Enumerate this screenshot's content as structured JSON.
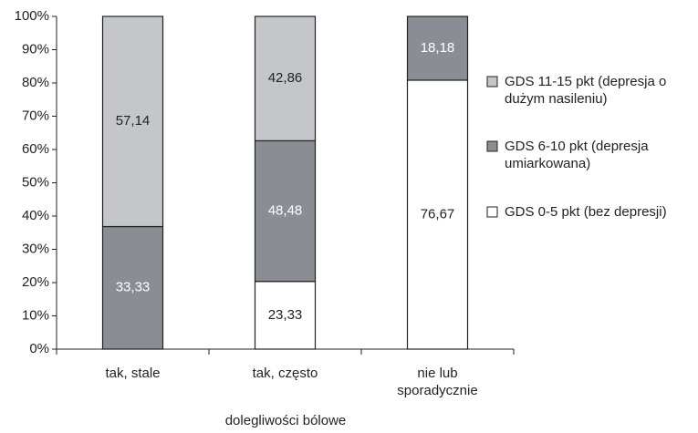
{
  "chart_data": {
    "type": "stacked_percent_bar",
    "x_label": "dolegliwości bólowe",
    "categories": [
      "tak, stale",
      "tak, często",
      "nie lub sporadycznie"
    ],
    "series": [
      {
        "name": "GDS 0-5 pkt (bez depresji)",
        "color": "#ffffff",
        "values": [
          null,
          23.33,
          76.67
        ],
        "value_labels": [
          null,
          "23,33",
          "76,67"
        ],
        "label_color": "#222222"
      },
      {
        "name": "GDS 6-10 pkt (depresja umiarkowana)",
        "color": "#8a8e94",
        "values": [
          33.33,
          48.48,
          18.18
        ],
        "value_labels": [
          "33,33",
          "48,48",
          "18,18"
        ],
        "label_color": "#ffffff"
      },
      {
        "name": "GDS 11-15 pkt (depresja o dużym nasileniu)",
        "color": "#c4c6c9",
        "values": [
          57.14,
          42.86,
          null
        ],
        "value_labels": [
          "57,14",
          "42,86",
          null
        ],
        "label_color": "#222222"
      }
    ],
    "ylim": [
      0,
      100
    ],
    "yticks": [
      {
        "value": 0,
        "label": "0%"
      },
      {
        "value": 10,
        "label": "10%"
      },
      {
        "value": 20,
        "label": "20%"
      },
      {
        "value": 30,
        "label": "30%"
      },
      {
        "value": 40,
        "label": "40%"
      },
      {
        "value": 50,
        "label": "50%"
      },
      {
        "value": 60,
        "label": "60%"
      },
      {
        "value": 70,
        "label": "70%"
      },
      {
        "value": 80,
        "label": "80%"
      },
      {
        "value": 90,
        "label": "90%"
      },
      {
        "value": 100,
        "label": "100%"
      }
    ],
    "legend": "right"
  }
}
